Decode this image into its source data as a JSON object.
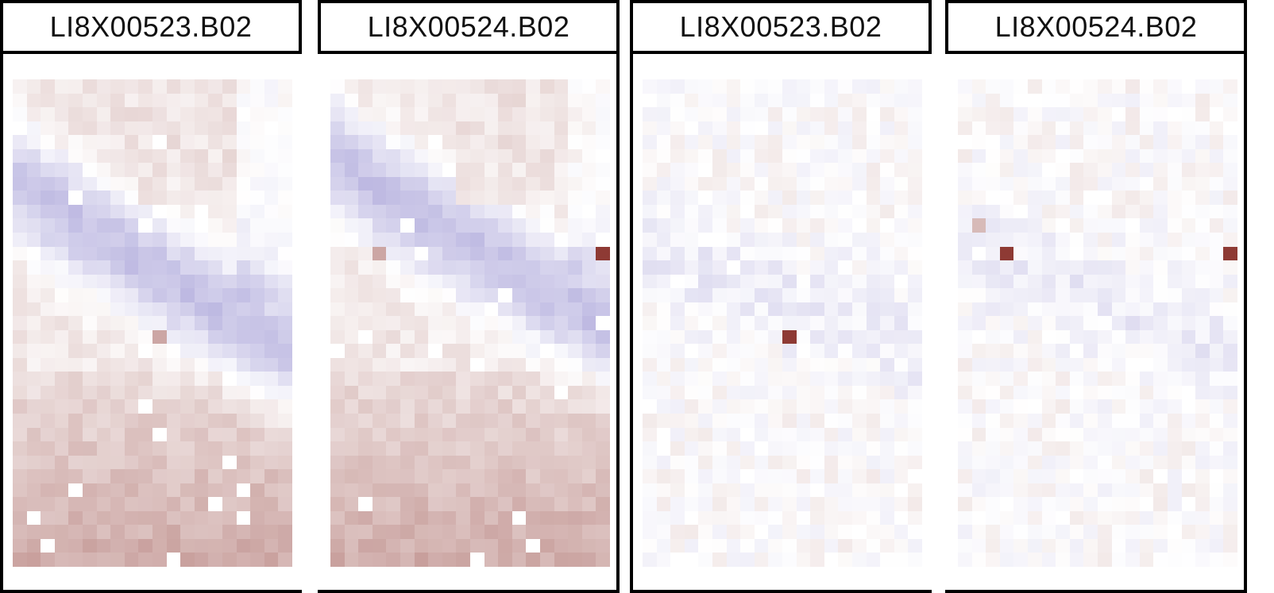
{
  "chart_data": [
    {
      "type": "heatmap",
      "title": "LI8X00523.B02",
      "grid": {
        "rows": 35,
        "cols": 20
      },
      "pattern": "A",
      "seed": 11,
      "highlight": {
        "row": 18,
        "col": 10,
        "level": 0.45
      },
      "frame": "left"
    },
    {
      "type": "heatmap",
      "title": "LI8X00524.B02",
      "grid": {
        "rows": 35,
        "cols": 20
      },
      "pattern": "A2",
      "seed": 23,
      "highlight": [
        {
          "row": 12,
          "col": 19,
          "level": 1.0
        },
        {
          "row": 12,
          "col": 3,
          "level": 0.45
        }
      ],
      "frame": "none"
    },
    {
      "type": "heatmap",
      "title": "LI8X00523.B02",
      "grid": {
        "rows": 35,
        "cols": 20
      },
      "pattern": "B",
      "seed": 37,
      "highlight": {
        "row": 18,
        "col": 10,
        "level": 1.0
      },
      "frame": "left"
    },
    {
      "type": "heatmap",
      "title": "LI8X00524.B02",
      "grid": {
        "rows": 35,
        "cols": 20
      },
      "pattern": "B2",
      "seed": 51,
      "highlight": [
        {
          "row": 12,
          "col": 19,
          "level": 1.0
        },
        {
          "row": 12,
          "col": 3,
          "level": 1.0
        },
        {
          "row": 10,
          "col": 1,
          "level": 0.35
        }
      ],
      "frame": "right"
    }
  ],
  "colors": {
    "low": "#7b72c4",
    "mid": "#ffffff",
    "high": "#8e3a34"
  }
}
